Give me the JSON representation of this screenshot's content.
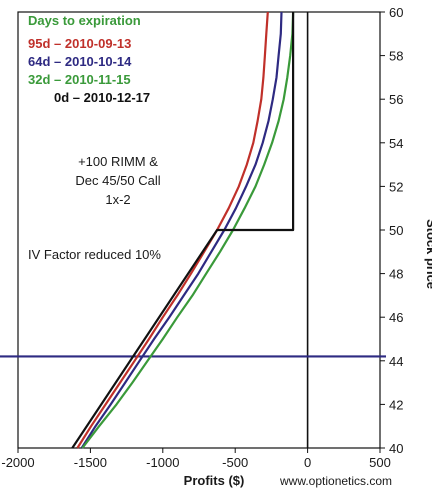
{
  "chart_data": {
    "type": "line",
    "xlabel": "Profits ($)",
    "ylabel": "Stock price",
    "xlim": [
      -2000,
      500
    ],
    "ylim": [
      40,
      60
    ],
    "x_ticks": [
      "-2000",
      "-1500",
      "-1000",
      "-500",
      "0",
      "500"
    ],
    "x_tick_values": [
      -2000,
      -1500,
      -1000,
      -500,
      0,
      500
    ],
    "y_ticks": [
      "40",
      "42",
      "44",
      "46",
      "48",
      "50",
      "52",
      "54",
      "56",
      "58",
      "60"
    ],
    "y_tick_values": [
      40,
      42,
      44,
      46,
      48,
      50,
      52,
      54,
      56,
      58,
      60
    ],
    "grid": false,
    "legend": {
      "title": "Days to expiration",
      "title_color": "#3a9a3a",
      "placement": "top-left",
      "entries": [
        {
          "label": "95d – 2010-09-13",
          "color": "#c0302a"
        },
        {
          "label": "64d – 2010-10-14",
          "color": "#2e2a82"
        },
        {
          "label": "32d – 2010-11-15",
          "color": "#3a9a3a"
        },
        {
          "label": "0d – 2010-12-17",
          "color": "#111111"
        }
      ]
    },
    "annotations": {
      "position_lines": [
        "+100 RIMM &",
        "Dec 45/50 Call",
        "1x-2"
      ],
      "iv_note": "IV Factor reduced 10%"
    },
    "credit": "www.optionetics.com",
    "reference_lines": {
      "current_price": {
        "y": 44.2,
        "color": "#2e2a82"
      },
      "zero_profit": {
        "x": 0,
        "color": "#111111"
      }
    },
    "series": [
      {
        "name": "95d – 2010-09-13",
        "color": "#c0302a",
        "points": [
          [
            -1590,
            40
          ],
          [
            -1495,
            41
          ],
          [
            -1395,
            42
          ],
          [
            -1295,
            43
          ],
          [
            -1195,
            44
          ],
          [
            -1095,
            45
          ],
          [
            -1000,
            46
          ],
          [
            -900,
            47
          ],
          [
            -805,
            48
          ],
          [
            -715,
            49
          ],
          [
            -625,
            50
          ],
          [
            -545,
            51
          ],
          [
            -475,
            52
          ],
          [
            -420,
            53
          ],
          [
            -375,
            54
          ],
          [
            -345,
            55
          ],
          [
            -320,
            56
          ],
          [
            -305,
            57
          ],
          [
            -295,
            58
          ],
          [
            -285,
            59
          ],
          [
            -275,
            60
          ]
        ]
      },
      {
        "name": "64d – 2010-10-14",
        "color": "#2e2a82",
        "points": [
          [
            -1560,
            40
          ],
          [
            -1465,
            41
          ],
          [
            -1360,
            42
          ],
          [
            -1260,
            43
          ],
          [
            -1160,
            44
          ],
          [
            -1060,
            45
          ],
          [
            -955,
            46
          ],
          [
            -855,
            47
          ],
          [
            -755,
            48
          ],
          [
            -665,
            49
          ],
          [
            -575,
            50
          ],
          [
            -495,
            51
          ],
          [
            -425,
            52
          ],
          [
            -360,
            53
          ],
          [
            -310,
            54
          ],
          [
            -270,
            55
          ],
          [
            -240,
            56
          ],
          [
            -215,
            57
          ],
          [
            -200,
            58
          ],
          [
            -185,
            59
          ],
          [
            -180,
            60
          ]
        ]
      },
      {
        "name": "32d – 2010-11-15",
        "color": "#3a9a3a",
        "points": [
          [
            -1555,
            40
          ],
          [
            -1440,
            41
          ],
          [
            -1320,
            42
          ],
          [
            -1210,
            43
          ],
          [
            -1105,
            44
          ],
          [
            -1000,
            45
          ],
          [
            -900,
            46
          ],
          [
            -795,
            47
          ],
          [
            -700,
            48
          ],
          [
            -605,
            49
          ],
          [
            -515,
            50
          ],
          [
            -435,
            51
          ],
          [
            -360,
            52
          ],
          [
            -300,
            53
          ],
          [
            -245,
            54
          ],
          [
            -200,
            55
          ],
          [
            -165,
            56
          ],
          [
            -140,
            57
          ],
          [
            -120,
            58
          ],
          [
            -105,
            59
          ],
          [
            -100,
            60
          ]
        ]
      },
      {
        "name": "0d – 2010-12-17",
        "color": "#111111",
        "points": [
          [
            -1625,
            40
          ],
          [
            -1125,
            45
          ],
          [
            -625,
            50
          ],
          [
            -100,
            50
          ],
          [
            -100,
            60
          ]
        ]
      }
    ]
  }
}
